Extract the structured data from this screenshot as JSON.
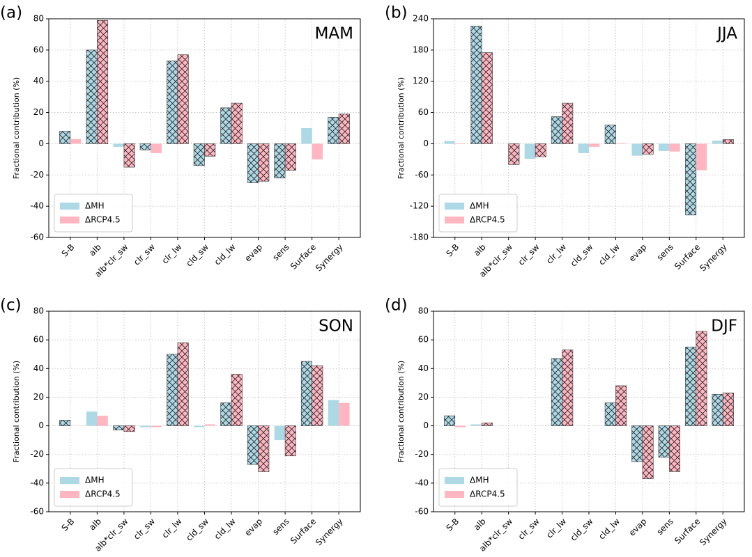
{
  "chart_data": [
    {
      "type": "bar",
      "panel_label": "(a)",
      "title": "MAM",
      "ylabel": "Fractional contribution (%)",
      "categories": [
        "S-B",
        "alb",
        "alb*clr_sw",
        "clr_sw",
        "clr_lw",
        "cld_sw",
        "cld_lw",
        "evap",
        "sens",
        "Surface",
        "Synergy"
      ],
      "series": [
        {
          "name": "ΔMH",
          "color": "#add8e6",
          "values": [
            8,
            60,
            -2,
            -4,
            53,
            -14,
            23,
            -25,
            -22,
            10,
            17
          ],
          "hatch": [
            true,
            true,
            false,
            true,
            true,
            true,
            true,
            true,
            true,
            false,
            true
          ]
        },
        {
          "name": "ΔRCP4.5",
          "color": "#ffb6c1",
          "values": [
            3,
            79,
            -15,
            -6,
            57,
            -8,
            26,
            -24,
            -17,
            -10,
            19
          ],
          "hatch": [
            false,
            true,
            true,
            false,
            true,
            true,
            true,
            true,
            true,
            false,
            true
          ]
        }
      ],
      "ylim": [
        -60,
        80
      ],
      "yticks": [
        -60,
        -40,
        -20,
        0,
        20,
        40,
        60,
        80
      ],
      "grid": true,
      "legend": "lower left"
    },
    {
      "type": "bar",
      "panel_label": "(b)",
      "title": "JJA",
      "ylabel": "Fractional contribution (%)",
      "categories": [
        "S-B",
        "alb",
        "alb*clr_sw",
        "clr_sw",
        "clr_lw",
        "cld_sw",
        "cld_lw",
        "evap",
        "sens",
        "Surface",
        "Synergy"
      ],
      "series": [
        {
          "name": "ΔMH",
          "color": "#add8e6",
          "values": [
            5,
            226,
            0,
            -29,
            52,
            -18,
            36,
            -23,
            -14,
            -137,
            6
          ],
          "hatch": [
            false,
            true,
            false,
            false,
            true,
            false,
            true,
            false,
            false,
            true,
            false
          ]
        },
        {
          "name": "ΔRCP4.5",
          "color": "#ffb6c1",
          "values": [
            1,
            175,
            -40,
            -25,
            78,
            -6,
            1,
            -20,
            -15,
            -51,
            8
          ],
          "hatch": [
            false,
            true,
            true,
            true,
            true,
            false,
            false,
            true,
            false,
            false,
            true
          ]
        }
      ],
      "ylim": [
        -180,
        240
      ],
      "yticks": [
        -180,
        -120,
        -60,
        0,
        60,
        120,
        180,
        240
      ],
      "grid": true,
      "legend": "lower left"
    },
    {
      "type": "bar",
      "panel_label": "(c)",
      "title": "SON",
      "ylabel": "Fractional contribution (%)",
      "categories": [
        "S-B",
        "alb",
        "alb*clr_sw",
        "clr_sw",
        "clr_lw",
        "cld_sw",
        "cld_lw",
        "evap",
        "sens",
        "Surface",
        "Synergy"
      ],
      "series": [
        {
          "name": "ΔMH",
          "color": "#add8e6",
          "values": [
            4,
            10,
            -3,
            -1,
            50,
            -1,
            16,
            -27,
            -10,
            45,
            18
          ],
          "hatch": [
            true,
            false,
            true,
            false,
            true,
            false,
            true,
            true,
            false,
            true,
            false
          ]
        },
        {
          "name": "ΔRCP4.5",
          "color": "#ffb6c1",
          "values": [
            0,
            7,
            -4,
            -1,
            58,
            1,
            36,
            -32,
            -21,
            42,
            16
          ],
          "hatch": [
            false,
            false,
            true,
            false,
            true,
            false,
            true,
            true,
            true,
            true,
            false
          ]
        }
      ],
      "ylim": [
        -60,
        80
      ],
      "yticks": [
        -60,
        -40,
        -20,
        0,
        20,
        40,
        60,
        80
      ],
      "grid": true,
      "legend": "lower left"
    },
    {
      "type": "bar",
      "panel_label": "(d)",
      "title": "DJF",
      "ylabel": "Fractional contribution (%)",
      "categories": [
        "S-B",
        "alb",
        "alb*clr_sw",
        "clr_sw",
        "clr_lw",
        "cld_sw",
        "cld_lw",
        "evap",
        "sens",
        "Surface",
        "Synergy"
      ],
      "series": [
        {
          "name": "ΔMH",
          "color": "#add8e6",
          "values": [
            7,
            1,
            0,
            0,
            47,
            0,
            16,
            -25,
            -22,
            55,
            22
          ],
          "hatch": [
            true,
            false,
            false,
            false,
            true,
            false,
            true,
            true,
            true,
            true,
            true
          ]
        },
        {
          "name": "ΔRCP4.5",
          "color": "#ffb6c1",
          "values": [
            -1,
            2,
            0,
            0,
            53,
            0,
            28,
            -37,
            -32,
            66,
            23
          ],
          "hatch": [
            false,
            true,
            false,
            false,
            true,
            false,
            true,
            true,
            true,
            true,
            true
          ]
        }
      ],
      "ylim": [
        -60,
        80
      ],
      "yticks": [
        -60,
        -40,
        -20,
        0,
        20,
        40,
        60,
        80
      ],
      "grid": true,
      "legend": "lower left"
    }
  ]
}
